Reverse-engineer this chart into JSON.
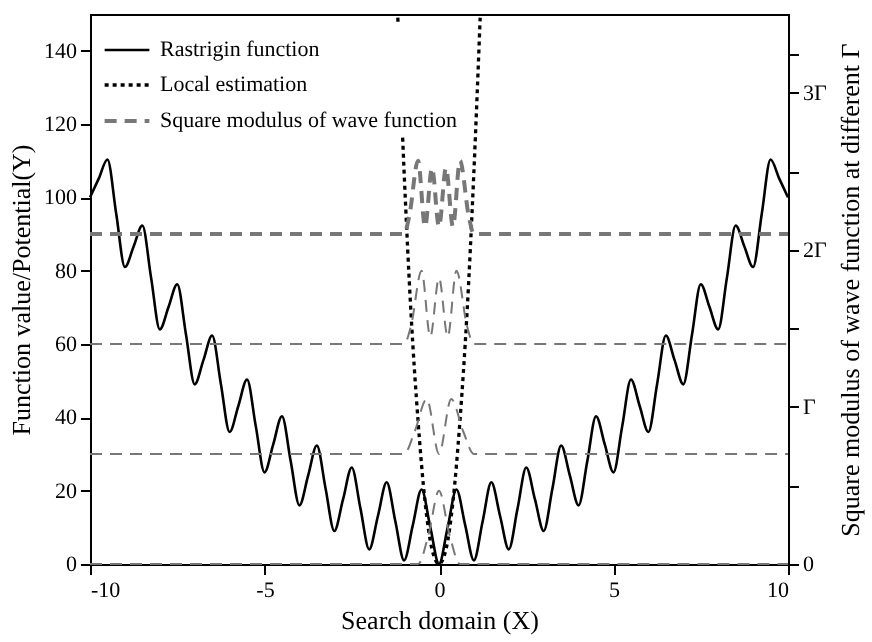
{
  "chart_data": {
    "type": "line",
    "xlabel": "Search domain (X)",
    "ylabel": "Function value/Potential(Y)",
    "y2label": "Square modulus of wave function at different Γ",
    "xlim": [
      -10,
      10
    ],
    "xticks": [
      -10,
      -5,
      0,
      5,
      10
    ],
    "ylim": [
      0,
      150
    ],
    "yticks": [
      0,
      20,
      40,
      60,
      80,
      100,
      120,
      140
    ],
    "y2lim": [
      0,
      3.5
    ],
    "y2ticks": [
      0,
      {
        "value": 0.5,
        "label": null
      },
      {
        "value": 1,
        "label": "Γ"
      },
      {
        "value": 1.5,
        "label": null
      },
      {
        "value": 2,
        "label": "2Γ"
      },
      {
        "value": 2.5,
        "label": null
      },
      {
        "value": 3,
        "label": "3Γ"
      },
      {
        "value": 3.25,
        "label": null
      }
    ],
    "grid": false,
    "legend": "top left",
    "series": [
      {
        "name": "Rastrigin function",
        "color": "#000000",
        "line_style": "solid",
        "x": [
          -10,
          -9.75,
          -9.5,
          -9.25,
          -9,
          -8.75,
          -8.5,
          -8.25,
          -8,
          -7.75,
          -7.5,
          -7.25,
          -7,
          -6.75,
          -6.5,
          -6.25,
          -6,
          -5.75,
          -5.5,
          -5.25,
          -5,
          -4.75,
          -4.5,
          -4.25,
          -4,
          -3.75,
          -3.5,
          -3.25,
          -3,
          -2.75,
          -2.5,
          -2.25,
          -2,
          -1.75,
          -1.5,
          -1.25,
          -1,
          -0.75,
          -0.5,
          -0.25,
          0,
          0.25,
          0.5,
          0.75,
          1,
          1.25,
          1.5,
          1.75,
          2,
          2.25,
          2.5,
          2.75,
          3,
          3.25,
          3.5,
          3.75,
          4,
          4.25,
          4.5,
          4.75,
          5,
          5.25,
          5.5,
          5.75,
          6,
          6.25,
          6.5,
          6.75,
          7,
          7.25,
          7.5,
          7.75,
          8,
          8.25,
          8.5,
          8.75,
          9,
          9.25,
          9.5,
          9.75,
          10
        ],
        "values": [
          100,
          105.1,
          110.3,
          95.6,
          81,
          86.6,
          92.3,
          78.1,
          64,
          70.1,
          76.3,
          62.6,
          49,
          55.6,
          62.3,
          49.1,
          36,
          43.1,
          50.3,
          37.6,
          25,
          32.6,
          40.3,
          28.1,
          16,
          24.1,
          32.3,
          20.6,
          9,
          17.6,
          26.3,
          15.1,
          4,
          13.1,
          22.3,
          11.6,
          1,
          10.6,
          20.3,
          10.1,
          0,
          10.1,
          20.3,
          10.6,
          1,
          11.6,
          22.3,
          13.1,
          4,
          15.1,
          26.3,
          17.6,
          9,
          20.6,
          32.3,
          24.1,
          16,
          28.1,
          40.3,
          32.6,
          25,
          37.6,
          50.3,
          43.1,
          36,
          49.1,
          62.3,
          55.6,
          49,
          62.6,
          76.3,
          70.1,
          64,
          78.1,
          92.3,
          86.6,
          81,
          95.6,
          110.3,
          105.1,
          100
        ]
      },
      {
        "name": "Local estimation",
        "color": "#000000",
        "line_style": "dotted",
        "x": [
          -1.18,
          -1,
          -0.8,
          -0.6,
          -0.4,
          -0.2,
          0,
          0.2,
          0.4,
          0.6,
          0.8,
          1,
          1.18
        ],
        "values": [
          149,
          107,
          68,
          39,
          17,
          4,
          0,
          4,
          17,
          39,
          68,
          107,
          149
        ]
      },
      {
        "name": "Square modulus of wave function",
        "color": "#777777",
        "line_style": "dashed",
        "x": [
          -10,
          -1,
          -0.85,
          -0.6,
          -0.4,
          -0.2,
          0,
          0.2,
          0.4,
          0.6,
          0.85,
          1,
          10
        ],
        "values": [
          90,
          90,
          95,
          110,
          92,
          108,
          92,
          108,
          92,
          110,
          95,
          90,
          90
        ]
      },
      {
        "color": "#777777",
        "line_style": "dashed",
        "x": [
          -10,
          -1,
          -0.8,
          -0.5,
          -0.25,
          0,
          0.25,
          0.5,
          0.8,
          1,
          10
        ],
        "values": [
          60,
          60,
          65,
          80,
          62,
          78,
          62,
          80,
          65,
          60,
          60
        ]
      },
      {
        "color": "#777777",
        "line_style": "dashed",
        "x": [
          -10,
          -1,
          -0.7,
          -0.35,
          0,
          0.35,
          0.7,
          1,
          10
        ],
        "values": [
          30,
          30,
          36,
          45,
          30,
          45,
          36,
          30,
          30
        ]
      },
      {
        "color": "#777777",
        "line_style": "dashed",
        "x": [
          -10,
          -0.6,
          -0.3,
          0,
          0.3,
          0.6,
          10
        ],
        "values": [
          0,
          0,
          8,
          20,
          8,
          0,
          0
        ]
      }
    ]
  }
}
